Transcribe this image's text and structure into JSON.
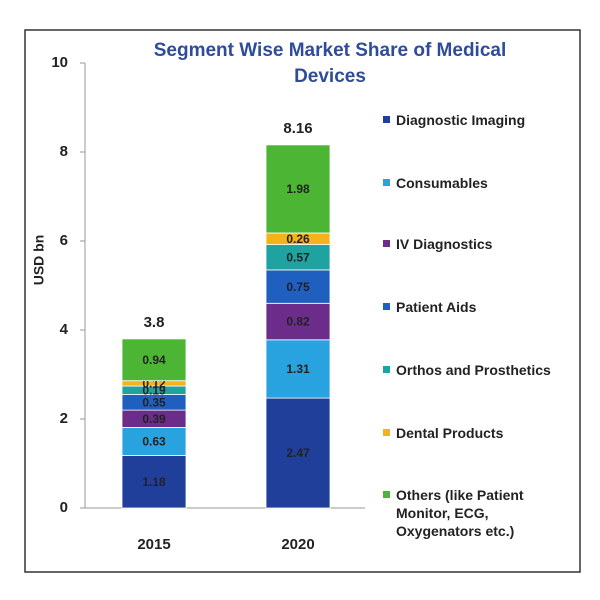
{
  "chart_data": {
    "type": "stacked-bar",
    "title": "Segment Wise Market Share of Medical Devices",
    "y_label": "USD bn",
    "categories": [
      "2015",
      "2020"
    ],
    "series": [
      {
        "name": "Diagnostic Imaging",
        "color": "#1f3f9a",
        "values": [
          1.18,
          2.47
        ]
      },
      {
        "name": "Consumables",
        "color": "#29a3e0",
        "values": [
          0.63,
          1.31
        ]
      },
      {
        "name": "IV Diagnostics",
        "color": "#6b2c8a",
        "values": [
          0.39,
          0.82
        ]
      },
      {
        "name": "Patient Aids",
        "color": "#1f5fbf",
        "values": [
          0.35,
          0.75
        ]
      },
      {
        "name": "Orthos and Prosthetics",
        "color": "#1fa3a0",
        "values": [
          0.19,
          0.57
        ]
      },
      {
        "name": "Dental Products",
        "color": "#f5b21b",
        "values": [
          0.12,
          0.26
        ]
      },
      {
        "name": "Others (like Patient Monitor, ECG, Oxygenators etc.)",
        "color": "#4cb534",
        "values": [
          0.94,
          1.98
        ]
      }
    ],
    "totals": [
      3.8,
      8.16
    ],
    "ylim": [
      0,
      10
    ],
    "yticks": [
      0,
      2,
      4,
      6,
      8,
      10
    ],
    "grid": false
  }
}
